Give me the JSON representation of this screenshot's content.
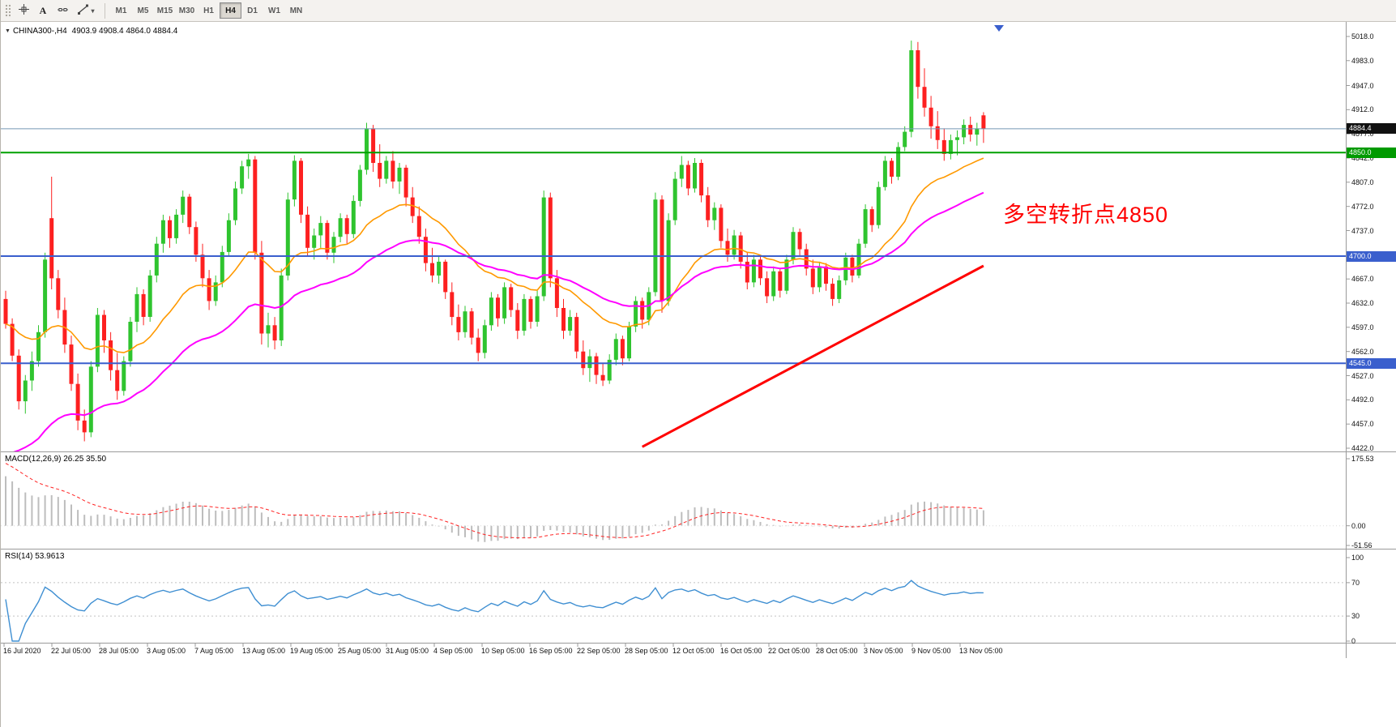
{
  "toolbar": {
    "tools": [
      {
        "id": "crosshair-tool"
      },
      {
        "id": "text-tool",
        "glyph": "A"
      },
      {
        "id": "horizontal-line-tool"
      },
      {
        "id": "trendline-tool",
        "caret": "▾"
      }
    ],
    "timeframes": [
      "M1",
      "M5",
      "M15",
      "M30",
      "H1",
      "H4",
      "D1",
      "W1",
      "MN"
    ],
    "selected_timeframe": "H4"
  },
  "chart_header": {
    "collapse_glyph": "▼",
    "symbol": "CHINA300-,H4",
    "ohlc_text": "4903.9 4908.4 4864.0 4884.4"
  },
  "colors": {
    "up_candle": "#2fc42f",
    "down_candle": "#fd2020",
    "ma_fast": "#ff9900",
    "ma_slow": "#ff00ff",
    "trendline": "#ff0000",
    "level_green": "#00a000",
    "level_blue": "#3a5fcd",
    "current_price_line": "#7596b5",
    "macd_histogram": "#bdbdbd",
    "macd_signal": "#ff2222",
    "rsi_line": "#3f8fd2",
    "rsi_levels": "#c2c2c2",
    "axis_line": "#9a9a9a",
    "shift_marker": "#3a5fcd",
    "annotation": "#ff0000"
  },
  "chart_data": {
    "type": "candlestick",
    "symbol": "CHINA300-",
    "timeframe": "H4",
    "ohlc_current": {
      "open": 4903.9,
      "high": 4908.4,
      "low": 4864.0,
      "close": 4884.4
    },
    "y_range": [
      4422.0,
      5018.0
    ],
    "y_ticks": [
      "5018.0",
      "4983.0",
      "4947.0",
      "4912.0",
      "4877.0",
      "4842.0",
      "4807.0",
      "4772.0",
      "4737.0",
      "4702.0",
      "4667.0",
      "4632.0",
      "4597.0",
      "4562.0",
      "4527.0",
      "4492.0",
      "4457.0",
      "4422.0"
    ],
    "x_labels": [
      "16 Jul 2020",
      "22 Jul 05:00",
      "28 Jul 05:00",
      "3 Aug 05:00",
      "7 Aug 05:00",
      "13 Aug 05:00",
      "19 Aug 05:00",
      "25 Aug 05:00",
      "31 Aug 05:00",
      "4 Sep 05:00",
      "10 Sep 05:00",
      "16 Sep 05:00",
      "22 Sep 05:00",
      "28 Sep 05:00",
      "12 Oct 05:00",
      "16 Oct 05:00",
      "22 Oct 05:00",
      "28 Oct 05:00",
      "3 Nov 05:00",
      "9 Nov 05:00",
      "13 Nov 05:00"
    ],
    "candles": [
      [
        4638,
        4650,
        4595,
        4602
      ],
      [
        4602,
        4610,
        4548,
        4556
      ],
      [
        4556,
        4565,
        4478,
        4490
      ],
      [
        4490,
        4528,
        4472,
        4520
      ],
      [
        4520,
        4562,
        4505,
        4548
      ],
      [
        4548,
        4600,
        4540,
        4590
      ],
      [
        4590,
        4705,
        4582,
        4695
      ],
      [
        4755,
        4815,
        4652,
        4668
      ],
      [
        4668,
        4680,
        4610,
        4622
      ],
      [
        4622,
        4640,
        4560,
        4572
      ],
      [
        4572,
        4585,
        4505,
        4515
      ],
      [
        4515,
        4530,
        4448,
        4462
      ],
      [
        4462,
        4478,
        4432,
        4445
      ],
      [
        4445,
        4548,
        4438,
        4540
      ],
      [
        4540,
        4625,
        4532,
        4615
      ],
      [
        4615,
        4622,
        4560,
        4578
      ],
      [
        4578,
        4590,
        4520,
        4535
      ],
      [
        4535,
        4560,
        4492,
        4505
      ],
      [
        4505,
        4555,
        4498,
        4548
      ],
      [
        4548,
        4612,
        4540,
        4605
      ],
      [
        4605,
        4655,
        4590,
        4645
      ],
      [
        4645,
        4652,
        4600,
        4612
      ],
      [
        4612,
        4680,
        4605,
        4672
      ],
      [
        4672,
        4728,
        4662,
        4718
      ],
      [
        4718,
        4760,
        4705,
        4752
      ],
      [
        4752,
        4758,
        4712,
        4726
      ],
      [
        4726,
        4768,
        4718,
        4760
      ],
      [
        4760,
        4795,
        4748,
        4786
      ],
      [
        4786,
        4790,
        4732,
        4742
      ],
      [
        4742,
        4750,
        4692,
        4702
      ],
      [
        4702,
        4718,
        4655,
        4668
      ],
      [
        4668,
        4680,
        4622,
        4635
      ],
      [
        4635,
        4672,
        4628,
        4662
      ],
      [
        4662,
        4715,
        4655,
        4706
      ],
      [
        4706,
        4762,
        4700,
        4752
      ],
      [
        4752,
        4808,
        4745,
        4798
      ],
      [
        4798,
        4838,
        4790,
        4830
      ],
      [
        4830,
        4848,
        4812,
        4840
      ],
      [
        4840,
        4845,
        4695,
        4705
      ],
      [
        4705,
        4722,
        4572,
        4588
      ],
      [
        4588,
        4618,
        4568,
        4600
      ],
      [
        4600,
        4612,
        4565,
        4578
      ],
      [
        4578,
        4682,
        4570,
        4672
      ],
      [
        4672,
        4792,
        4665,
        4782
      ],
      [
        4782,
        4846,
        4772,
        4838
      ],
      [
        4838,
        4842,
        4748,
        4760
      ],
      [
        4760,
        4772,
        4700,
        4712
      ],
      [
        4712,
        4740,
        4695,
        4730
      ],
      [
        4730,
        4758,
        4712,
        4748
      ],
      [
        4748,
        4752,
        4695,
        4705
      ],
      [
        4705,
        4735,
        4690,
        4728
      ],
      [
        4728,
        4762,
        4720,
        4755
      ],
      [
        4755,
        4760,
        4718,
        4732
      ],
      [
        4732,
        4788,
        4726,
        4780
      ],
      [
        4780,
        4832,
        4772,
        4825
      ],
      [
        4825,
        4893,
        4818,
        4885
      ],
      [
        4885,
        4890,
        4822,
        4835
      ],
      [
        4835,
        4862,
        4800,
        4812
      ],
      [
        4812,
        4845,
        4805,
        4838
      ],
      [
        4838,
        4852,
        4798,
        4808
      ],
      [
        4808,
        4835,
        4790,
        4828
      ],
      [
        4828,
        4832,
        4772,
        4785
      ],
      [
        4785,
        4800,
        4748,
        4758
      ],
      [
        4758,
        4772,
        4718,
        4728
      ],
      [
        4728,
        4740,
        4678,
        4690
      ],
      [
        4690,
        4712,
        4662,
        4672
      ],
      [
        4672,
        4700,
        4660,
        4692
      ],
      [
        4692,
        4695,
        4638,
        4648
      ],
      [
        4648,
        4662,
        4600,
        4612
      ],
      [
        4612,
        4630,
        4578,
        4590
      ],
      [
        4590,
        4628,
        4582,
        4620
      ],
      [
        4620,
        4625,
        4572,
        4582
      ],
      [
        4582,
        4595,
        4548,
        4560
      ],
      [
        4560,
        4608,
        4552,
        4600
      ],
      [
        4600,
        4648,
        4592,
        4640
      ],
      [
        4640,
        4645,
        4598,
        4610
      ],
      [
        4610,
        4662,
        4602,
        4655
      ],
      [
        4655,
        4660,
        4612,
        4622
      ],
      [
        4622,
        4632,
        4580,
        4592
      ],
      [
        4592,
        4645,
        4585,
        4638
      ],
      [
        4638,
        4642,
        4595,
        4605
      ],
      [
        4605,
        4650,
        4598,
        4642
      ],
      [
        4642,
        4795,
        4635,
        4785
      ],
      [
        4785,
        4792,
        4655,
        4668
      ],
      [
        4668,
        4680,
        4612,
        4625
      ],
      [
        4625,
        4638,
        4580,
        4592
      ],
      [
        4592,
        4622,
        4585,
        4612
      ],
      [
        4612,
        4618,
        4552,
        4562
      ],
      [
        4562,
        4578,
        4528,
        4538
      ],
      [
        4538,
        4565,
        4518,
        4555
      ],
      [
        4555,
        4560,
        4515,
        4528
      ],
      [
        4528,
        4545,
        4512,
        4520
      ],
      [
        4520,
        4558,
        4515,
        4550
      ],
      [
        4550,
        4588,
        4542,
        4580
      ],
      [
        4580,
        4585,
        4542,
        4552
      ],
      [
        4552,
        4605,
        4548,
        4598
      ],
      [
        4598,
        4642,
        4590,
        4635
      ],
      [
        4635,
        4640,
        4595,
        4608
      ],
      [
        4608,
        4655,
        4600,
        4648
      ],
      [
        4648,
        4792,
        4642,
        4782
      ],
      [
        4782,
        4788,
        4618,
        4635
      ],
      [
        4635,
        4762,
        4628,
        4752
      ],
      [
        4752,
        4822,
        4745,
        4812
      ],
      [
        4812,
        4845,
        4800,
        4832
      ],
      [
        4832,
        4838,
        4788,
        4798
      ],
      [
        4798,
        4842,
        4792,
        4835
      ],
      [
        4835,
        4840,
        4778,
        4788
      ],
      [
        4788,
        4800,
        4742,
        4752
      ],
      [
        4752,
        4778,
        4738,
        4770
      ],
      [
        4770,
        4775,
        4712,
        4722
      ],
      [
        4722,
        4740,
        4692,
        4702
      ],
      [
        4702,
        4738,
        4695,
        4730
      ],
      [
        4730,
        4735,
        4682,
        4692
      ],
      [
        4692,
        4705,
        4652,
        4662
      ],
      [
        4662,
        4702,
        4655,
        4695
      ],
      [
        4695,
        4700,
        4658,
        4668
      ],
      [
        4668,
        4678,
        4632,
        4642
      ],
      [
        4642,
        4685,
        4635,
        4678
      ],
      [
        4678,
        4682,
        4640,
        4650
      ],
      [
        4650,
        4702,
        4645,
        4695
      ],
      [
        4695,
        4742,
        4688,
        4735
      ],
      [
        4735,
        4740,
        4700,
        4710
      ],
      [
        4710,
        4718,
        4672,
        4682
      ],
      [
        4682,
        4695,
        4645,
        4655
      ],
      [
        4655,
        4692,
        4648,
        4685
      ],
      [
        4685,
        4690,
        4650,
        4660
      ],
      [
        4660,
        4668,
        4628,
        4638
      ],
      [
        4638,
        4672,
        4632,
        4665
      ],
      [
        4665,
        4705,
        4658,
        4698
      ],
      [
        4698,
        4702,
        4662,
        4672
      ],
      [
        4672,
        4725,
        4668,
        4718
      ],
      [
        4718,
        4775,
        4712,
        4768
      ],
      [
        4768,
        4772,
        4735,
        4745
      ],
      [
        4745,
        4808,
        4740,
        4800
      ],
      [
        4800,
        4845,
        4795,
        4838
      ],
      [
        4838,
        4842,
        4805,
        4815
      ],
      [
        4815,
        4865,
        4810,
        4858
      ],
      [
        4858,
        4888,
        4852,
        4880
      ],
      [
        4880,
        5012,
        4872,
        4998
      ],
      [
        4998,
        5010,
        4928,
        4945
      ],
      [
        4945,
        4972,
        4902,
        4915
      ],
      [
        4915,
        4932,
        4870,
        4888
      ],
      [
        4888,
        4910,
        4855,
        4868
      ],
      [
        4868,
        4885,
        4838,
        4848
      ],
      [
        4848,
        4876,
        4840,
        4868
      ],
      [
        4868,
        4882,
        4846,
        4872
      ],
      [
        4872,
        4898,
        4862,
        4890
      ],
      [
        4890,
        4902,
        4866,
        4876
      ],
      [
        4876,
        4893,
        4860,
        4885
      ],
      [
        4903.9,
        4908.4,
        4864.0,
        4884.4
      ]
    ],
    "overlays": {
      "ma_fast": {
        "period": 22,
        "color": "#ff9900"
      },
      "ma_slow": {
        "period": 44,
        "color": "#ff00ff"
      },
      "horizontal_lines": [
        {
          "price": 4884.4,
          "label": "4884.4",
          "role": "current-price",
          "color": "#7596b5",
          "badge_bg": "#111111",
          "width": 1
        },
        {
          "price": 4850.0,
          "label": "4850.0",
          "role": "pivot",
          "color": "#00a000",
          "badge_bg": "#009a00",
          "width": 2
        },
        {
          "price": 4700.0,
          "label": "4700.0",
          "role": "support",
          "color": "#3a5fcd",
          "badge_bg": "#3a5fcd",
          "width": 2
        },
        {
          "price": 4545.0,
          "label": "4545.0",
          "role": "support",
          "color": "#3a5fcd",
          "badge_bg": "#3a5fcd",
          "width": 2
        }
      ],
      "trendline": {
        "from_index": 97,
        "from_price": 4424,
        "to_index": 149,
        "to_price": 4686,
        "color": "#ff0000",
        "width": 3
      }
    },
    "annotations": [
      {
        "text": "多空转折点4850",
        "color": "#ff0000"
      }
    ],
    "macd": {
      "label": "MACD(12,26,9) 26.25 35.50",
      "fast": 12,
      "slow": 26,
      "signal": 9,
      "value": 26.25,
      "signal_value": 35.5,
      "y_range": [
        -51.56,
        175.53
      ],
      "ticks": [
        {
          "text": "175.53",
          "value": 175.53
        },
        {
          "text": "0.00",
          "value": 0
        },
        {
          "text": "-51.56",
          "value": -51.56
        }
      ]
    },
    "rsi": {
      "label": "RSI(14) 53.9613",
      "period": 14,
      "value": 53.9613,
      "levels": [
        70,
        30
      ],
      "y_range": [
        0,
        100
      ],
      "ticks": [
        {
          "text": "100",
          "value": 100
        },
        {
          "text": "70",
          "value": 70
        },
        {
          "text": "30",
          "value": 30
        },
        {
          "text": "0",
          "value": 0
        }
      ]
    }
  }
}
